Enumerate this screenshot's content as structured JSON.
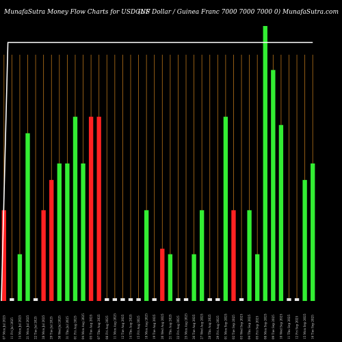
{
  "header": {
    "title_left": "MunafaSutra  Money Flow  Charts for USDGNF",
    "title_right": "(US Dollar / Guinea  Franc 7000   7000   7000   0) MunafaSutra.com"
  },
  "colors": {
    "background": "#000000",
    "gridline": "#b8741a",
    "up_bar": "#33ee33",
    "down_bar": "#ff2222",
    "neutral_bar": "#e8e8e8",
    "price_line": "#ffffff"
  },
  "chart_data": {
    "type": "bar",
    "title": "MunafaSutra  Money Flow  Charts for USDGNF",
    "ylim": [
      0,
      100
    ],
    "grid": true,
    "categories": [
      "07 Mon Jul 2025",
      "11 Fri Jul 2025",
      "14 Mon Jul 2025",
      "21 Mon Jul 2025",
      "22 Tue Jul 2025",
      "28 Mon Jul 2025",
      "29 Tue Jul 2025",
      "30 Wed Jul 2025",
      "31 Thu Jul 2025",
      "01 Fri Aug 2025",
      "04 Mon Aug 2025",
      "05 Tue Aug 2025",
      "07 Thu Aug 2025",
      "08 Fri Aug 2025",
      "11 Mon Aug 2025",
      "12 Tue Aug 2025",
      "14 Thu Aug 2025",
      "15 Fri Aug 2025",
      "18 Mon Aug 2025",
      "19 Tue Aug 2025",
      "20 Wed Aug 2025",
      "21 Thu Aug 2025",
      "22 Fri Aug 2025",
      "25 Mon Aug 2025",
      "26 Tue Aug 2025",
      "27 Wed Aug 2025",
      "28 Thu Aug 2025",
      "29 Fri Aug 2025",
      "01 Mon Sep 2025",
      "02 Tue Sep 2025",
      "03 Wed Sep 2025",
      "04 Thu Sep 2025",
      "05 Fri Sep 2025",
      "08 Mon Sep 2025",
      "09 Tue Sep 2025",
      "10 Wed Sep 2025",
      "11 Thu Sep 2025",
      "12 Fri Sep 2025",
      "15 Mon Sep 2025",
      "16 Tue Sep 2025"
    ],
    "values": [
      33,
      1,
      17,
      61,
      1,
      33,
      44,
      50,
      50,
      67,
      50,
      67,
      67,
      1,
      1,
      1,
      1,
      1,
      33,
      1,
      19,
      17,
      1,
      1,
      17,
      33,
      1,
      1,
      67,
      33,
      1,
      33,
      17,
      100,
      84,
      64,
      1,
      1,
      44,
      50
    ],
    "colors": [
      "down",
      "neutral",
      "up",
      "up",
      "neutral",
      "down",
      "down",
      "up",
      "up",
      "up",
      "up",
      "down",
      "down",
      "neutral",
      "neutral",
      "neutral",
      "neutral",
      "neutral",
      "up",
      "neutral",
      "down",
      "up",
      "neutral",
      "neutral",
      "up",
      "up",
      "neutral",
      "neutral",
      "up",
      "down",
      "neutral",
      "up",
      "up",
      "up",
      "up",
      "up",
      "neutral",
      "neutral",
      "up",
      "up"
    ],
    "price_line": [
      0,
      94,
      94,
      94,
      94,
      94,
      94,
      94,
      94,
      94,
      94,
      94,
      94,
      94,
      94,
      94,
      94,
      94,
      94,
      94,
      94,
      94,
      94,
      94,
      94,
      94,
      94,
      94,
      94,
      94,
      94,
      94,
      94,
      94,
      94,
      94,
      94,
      94,
      94,
      94
    ]
  }
}
